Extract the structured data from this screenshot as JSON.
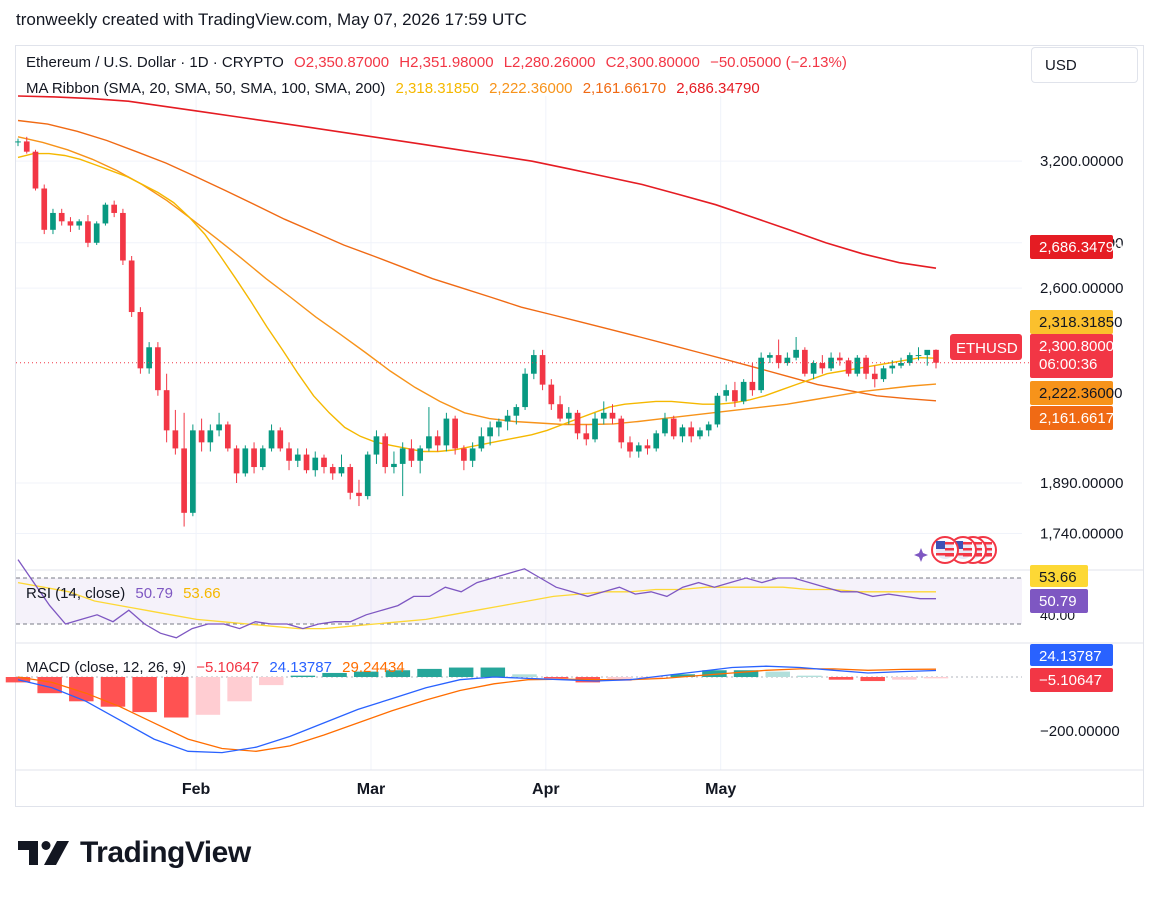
{
  "caption": "tronweekly created with TradingView.com, May 07, 2026 17:59 UTC",
  "currency_button": "USD",
  "legend": {
    "symbol": "Ethereum / U.S. Dollar · 1D · CRYPTO",
    "open": "O2,350.87000",
    "high": "H2,351.98000",
    "low": "L2,280.26000",
    "close": "C2,300.80000",
    "change": "−50.05000 (−2.13%)",
    "ma_title": "MA Ribbon (SMA, 20, SMA, 50, SMA, 100, SMA, 200)",
    "ma20": "2,318.31850",
    "ma50": "2,222.36000",
    "ma100": "2,161.66170",
    "ma200": "2,686.34790",
    "rsi_title": "RSI (14, close)",
    "rsi_value": "50.79",
    "rsi_ma": "53.66",
    "macd_title": "MACD (close, 12, 26, 9)",
    "macd_hist": "−5.10647",
    "macd_line": "24.13787",
    "macd_signal": "29.24434"
  },
  "axis": {
    "price_ticks": [
      "3,200.00000",
      "2,800.00000",
      "2,600.00000",
      "1,890.00000",
      "1,740.00000"
    ],
    "macd_tick": "−200.00000",
    "rsi_tick": "40.00",
    "months": [
      "Feb",
      "Mar",
      "Apr",
      "May"
    ]
  },
  "price_tags": {
    "ma200": "2,686.34790",
    "ma20": "2,318.31850",
    "last_price": "2,300.80000",
    "countdown": "06:00:36",
    "ma50": "2,222.36000",
    "ma100": "2,161.66170",
    "rsi_ma": "53.66",
    "rsi": "50.79",
    "macd_line": "24.13787",
    "macd_hist": "−5.10647",
    "symbol_tag": "ETHUSD"
  },
  "colors": {
    "up": "#089981",
    "down": "#f23645",
    "ma20": "#f5b800",
    "ma50": "#f7931a",
    "ma100": "#f06a14",
    "ma200": "#e51c23",
    "rsi": "#7e57c2",
    "rsi_ma": "#fdd835",
    "macd_line": "#2962ff",
    "macd_signal": "#ff6d00"
  },
  "brand": "TradingView",
  "chart_data": {
    "type": "candlestick",
    "title": "Ethereum / U.S. Dollar · 1D · CRYPTO",
    "y_scale": "log",
    "ylim": [
      1650,
      3560
    ],
    "candles_ohlc": [
      [
        3300,
        3320,
        3280,
        3305
      ],
      [
        3305,
        3330,
        3240,
        3250
      ],
      [
        3250,
        3260,
        3050,
        3060
      ],
      [
        3060,
        3080,
        2840,
        2860
      ],
      [
        2860,
        2960,
        2840,
        2940
      ],
      [
        2940,
        2960,
        2880,
        2900
      ],
      [
        2900,
        2920,
        2850,
        2880
      ],
      [
        2880,
        2910,
        2860,
        2900
      ],
      [
        2900,
        2930,
        2780,
        2800
      ],
      [
        2800,
        2900,
        2790,
        2890
      ],
      [
        2890,
        2990,
        2880,
        2980
      ],
      [
        2980,
        3000,
        2920,
        2940
      ],
      [
        2940,
        2960,
        2700,
        2720
      ],
      [
        2720,
        2740,
        2480,
        2500
      ],
      [
        2500,
        2520,
        2260,
        2280
      ],
      [
        2280,
        2380,
        2260,
        2360
      ],
      [
        2360,
        2380,
        2180,
        2200
      ],
      [
        2200,
        2260,
        2020,
        2060
      ],
      [
        2060,
        2130,
        1980,
        2000
      ],
      [
        2000,
        2120,
        1760,
        1800
      ],
      [
        1800,
        2080,
        1790,
        2060
      ],
      [
        2060,
        2100,
        1990,
        2020
      ],
      [
        2020,
        2080,
        1990,
        2060
      ],
      [
        2060,
        2120,
        2040,
        2080
      ],
      [
        2080,
        2090,
        1990,
        2000
      ],
      [
        2000,
        2010,
        1890,
        1920
      ],
      [
        1920,
        2010,
        1910,
        2000
      ],
      [
        2000,
        2020,
        1920,
        1940
      ],
      [
        1940,
        2010,
        1930,
        2000
      ],
      [
        2000,
        2080,
        1990,
        2060
      ],
      [
        2060,
        2070,
        1990,
        2000
      ],
      [
        2000,
        2020,
        1930,
        1960
      ],
      [
        1960,
        2000,
        1940,
        1980
      ],
      [
        1980,
        2000,
        1920,
        1930
      ],
      [
        1930,
        1990,
        1910,
        1970
      ],
      [
        1970,
        1980,
        1920,
        1940
      ],
      [
        1940,
        1950,
        1900,
        1920
      ],
      [
        1920,
        1980,
        1910,
        1940
      ],
      [
        1940,
        1950,
        1840,
        1860
      ],
      [
        1860,
        1900,
        1820,
        1850
      ],
      [
        1850,
        1990,
        1840,
        1980
      ],
      [
        1980,
        2060,
        1950,
        2040
      ],
      [
        2040,
        2050,
        1920,
        1940
      ],
      [
        1940,
        1990,
        1920,
        1950
      ],
      [
        1950,
        2020,
        1850,
        2000
      ],
      [
        2000,
        2030,
        1940,
        1960
      ],
      [
        1960,
        2010,
        1920,
        2000
      ],
      [
        2000,
        2140,
        1990,
        2040
      ],
      [
        2040,
        2060,
        1990,
        2010
      ],
      [
        2010,
        2120,
        1990,
        2100
      ],
      [
        2100,
        2110,
        1980,
        2000
      ],
      [
        2000,
        2010,
        1930,
        1960
      ],
      [
        1960,
        2020,
        1940,
        2000
      ],
      [
        2000,
        2070,
        1990,
        2040
      ],
      [
        2040,
        2090,
        2010,
        2070
      ],
      [
        2070,
        2100,
        2040,
        2090
      ],
      [
        2090,
        2130,
        2060,
        2110
      ],
      [
        2110,
        2150,
        2080,
        2140
      ],
      [
        2140,
        2280,
        2130,
        2260
      ],
      [
        2260,
        2350,
        2240,
        2330
      ],
      [
        2330,
        2350,
        2200,
        2220
      ],
      [
        2220,
        2240,
        2130,
        2150
      ],
      [
        2150,
        2180,
        2090,
        2100
      ],
      [
        2100,
        2140,
        2080,
        2120
      ],
      [
        2120,
        2130,
        2030,
        2050
      ],
      [
        2050,
        2080,
        2010,
        2030
      ],
      [
        2030,
        2120,
        2020,
        2100
      ],
      [
        2100,
        2160,
        2080,
        2120
      ],
      [
        2120,
        2150,
        2080,
        2100
      ],
      [
        2100,
        2110,
        2000,
        2020
      ],
      [
        2020,
        2040,
        1970,
        1990
      ],
      [
        1990,
        2020,
        1970,
        2010
      ],
      [
        2010,
        2030,
        1980,
        2000
      ],
      [
        2000,
        2060,
        1990,
        2050
      ],
      [
        2050,
        2120,
        2040,
        2100
      ],
      [
        2100,
        2110,
        2030,
        2040
      ],
      [
        2040,
        2080,
        2020,
        2070
      ],
      [
        2070,
        2090,
        2020,
        2040
      ],
      [
        2040,
        2070,
        2030,
        2060
      ],
      [
        2060,
        2090,
        2040,
        2080
      ],
      [
        2080,
        2190,
        2070,
        2180
      ],
      [
        2180,
        2220,
        2160,
        2200
      ],
      [
        2200,
        2230,
        2140,
        2160
      ],
      [
        2160,
        2240,
        2150,
        2230
      ],
      [
        2230,
        2300,
        2180,
        2200
      ],
      [
        2200,
        2340,
        2190,
        2320
      ],
      [
        2320,
        2340,
        2300,
        2330
      ],
      [
        2330,
        2390,
        2280,
        2300
      ],
      [
        2300,
        2340,
        2290,
        2320
      ],
      [
        2320,
        2400,
        2310,
        2350
      ],
      [
        2350,
        2360,
        2250,
        2260
      ],
      [
        2260,
        2310,
        2240,
        2300
      ],
      [
        2300,
        2330,
        2260,
        2280
      ],
      [
        2280,
        2340,
        2270,
        2320
      ],
      [
        2320,
        2340,
        2290,
        2310
      ],
      [
        2310,
        2320,
        2250,
        2260
      ],
      [
        2260,
        2330,
        2250,
        2320
      ],
      [
        2320,
        2330,
        2240,
        2260
      ],
      [
        2260,
        2290,
        2210,
        2240
      ],
      [
        2240,
        2290,
        2230,
        2280
      ],
      [
        2280,
        2310,
        2260,
        2290
      ],
      [
        2290,
        2320,
        2280,
        2300
      ],
      [
        2300,
        2340,
        2290,
        2330
      ],
      [
        2330,
        2360,
        2310,
        2330
      ],
      [
        2330,
        2340,
        2290,
        2350
      ],
      [
        2350,
        2352,
        2280,
        2301
      ]
    ],
    "ma20": [
      3220,
      3240,
      3240,
      3230,
      3210,
      3180,
      3150,
      3120,
      3080,
      3040,
      2990,
      2920,
      2840,
      2740,
      2640,
      2540,
      2440,
      2350,
      2260,
      2180,
      2120,
      2070,
      2040,
      2020,
      2010,
      2000,
      1990,
      1990,
      1995,
      2005,
      2015,
      2025,
      2035,
      2045,
      2060,
      2080,
      2100,
      2120,
      2140,
      2150,
      2155,
      2160,
      2160,
      2155,
      2150,
      2150,
      2155,
      2165,
      2180,
      2200,
      2220,
      2240,
      2260,
      2270,
      2280,
      2290,
      2300,
      2310,
      2320,
      2318
    ],
    "ma50": [
      3330,
      3300,
      3260,
      3210,
      3150,
      3080,
      3000,
      2910,
      2820,
      2730,
      2640,
      2560,
      2480,
      2410,
      2340,
      2270,
      2210,
      2160,
      2120,
      2100,
      2090,
      2085,
      2080,
      2080,
      2082,
      2090,
      2100,
      2110,
      2120,
      2130,
      2140,
      2150,
      2165,
      2180,
      2195,
      2205,
      2215,
      2222
    ],
    "ma100": [
      3420,
      3400,
      3360,
      3310,
      3250,
      3190,
      3120,
      3050,
      2980,
      2910,
      2850,
      2790,
      2740,
      2690,
      2640,
      2600,
      2560,
      2520,
      2490,
      2460,
      2430,
      2400,
      2370,
      2340,
      2310,
      2280,
      2250,
      2220,
      2200,
      2180,
      2170,
      2162
    ],
    "ma200": [
      3560,
      3555,
      3545,
      3530,
      3500,
      3470,
      3440,
      3410,
      3380,
      3350,
      3320,
      3290,
      3260,
      3230,
      3200,
      3160,
      3120,
      3080,
      3030,
      2980,
      2920,
      2860,
      2800,
      2750,
      2710,
      2686
    ],
    "rsi": [
      68,
      58,
      48,
      40,
      42,
      44,
      41,
      46,
      40,
      36,
      34,
      38,
      40,
      40,
      38,
      41,
      40,
      40,
      38,
      40,
      41,
      41,
      44,
      46,
      48,
      52,
      52,
      56,
      54,
      58,
      60,
      62,
      64,
      60,
      56,
      54,
      52,
      54,
      56,
      53,
      54,
      52,
      56,
      58,
      56,
      58,
      60,
      58,
      60,
      60,
      58,
      56,
      54,
      54,
      52,
      53,
      52,
      51,
      51
    ],
    "rsi_ma": [
      58,
      56,
      54,
      50,
      48,
      46,
      44,
      42,
      41,
      40,
      39,
      38,
      38,
      39,
      40,
      41,
      42,
      44,
      46,
      48,
      50,
      52,
      53,
      54,
      54,
      55,
      55,
      56,
      56,
      56,
      56,
      55,
      55,
      54,
      54,
      54,
      54
    ],
    "macd_hist": [
      -20,
      -60,
      -90,
      -110,
      -130,
      -150,
      -140,
      -90,
      -30,
      5,
      15,
      20,
      25,
      30,
      35,
      35,
      10,
      -5,
      -20,
      -15,
      -5,
      10,
      25,
      25,
      20,
      5,
      -10,
      -15,
      -10,
      -5
    ],
    "macd_line": [
      -10,
      -40,
      -90,
      -160,
      -230,
      -275,
      -280,
      -260,
      -220,
      -170,
      -120,
      -80,
      -40,
      -10,
      0,
      -5,
      -10,
      -15,
      -10,
      5,
      20,
      35,
      40,
      35,
      25,
      15,
      20,
      24
    ],
    "macd_signal": [
      0,
      -20,
      -60,
      -110,
      -170,
      -230,
      -265,
      -275,
      -255,
      -215,
      -170,
      -125,
      -85,
      -50,
      -25,
      -10,
      -8,
      -10,
      -10,
      -5,
      5,
      15,
      25,
      30,
      30,
      25,
      28,
      29
    ]
  }
}
